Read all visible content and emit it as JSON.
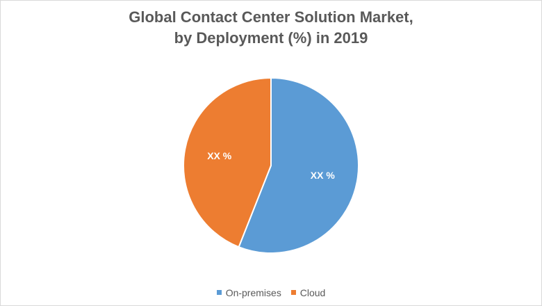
{
  "chart_data": {
    "type": "pie",
    "title_line1": "Global Contact Center Solution Market,",
    "title_line2": "by Deployment (%) in 2019",
    "categories": [
      "On-premises",
      "Cloud"
    ],
    "values": [
      56,
      44
    ],
    "data_labels": [
      "XX %",
      "XX %"
    ],
    "colors": [
      "#5b9bd5",
      "#ed7d31"
    ],
    "legend_position": "bottom",
    "start_angle": "12 o'clock, clockwise"
  }
}
